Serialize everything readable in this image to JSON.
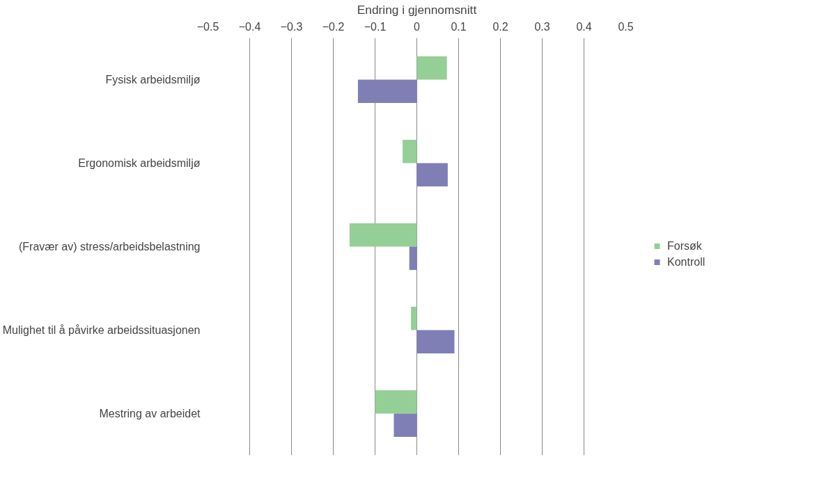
{
  "chart_data": {
    "type": "bar",
    "orientation": "horizontal",
    "xlabel": "Endring i gjennomsnitt",
    "categories": [
      "Fysisk arbeidsmiljø",
      "Ergonomisk arbeidsmiljø",
      "(Fravær av) stress/arbeidsbelastning",
      "Mulighet til å påvirke arbeidssituasjonen",
      "Mestring av arbeidet"
    ],
    "series": [
      {
        "name": "Forsøk",
        "color": "#94cf96",
        "values": [
          0.072,
          -0.034,
          -0.161,
          -0.014,
          -0.1
        ]
      },
      {
        "name": "Kontroll",
        "color": "#7f7fb5",
        "values": [
          -0.141,
          0.074,
          -0.018,
          0.09,
          -0.055
        ]
      }
    ],
    "xlim": [
      -0.5,
      0.5
    ],
    "xticks": [
      -0.5,
      -0.4,
      -0.3,
      -0.2,
      -0.1,
      0,
      0.1,
      0.2,
      0.3,
      0.4,
      0.5
    ],
    "grid": "x",
    "legend": "right"
  }
}
